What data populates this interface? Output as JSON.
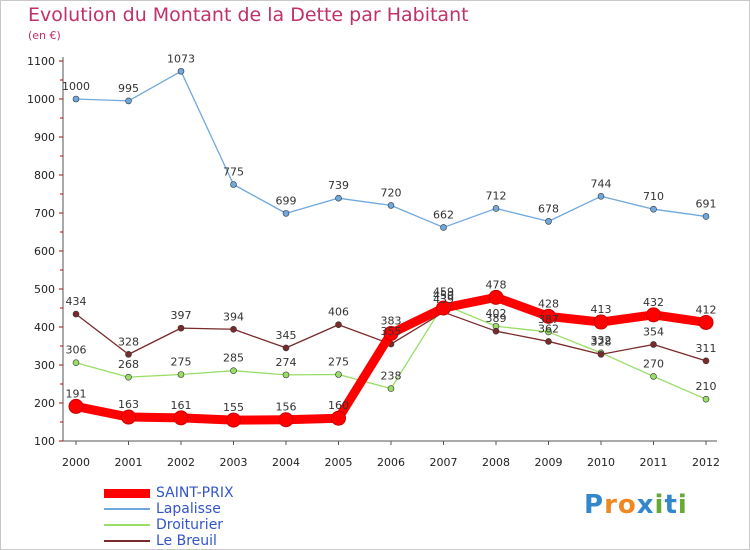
{
  "header": {
    "title": "Evolution du Montant de la Dette par Habitant",
    "unit": "(en €)"
  },
  "chart_data": {
    "type": "line",
    "title": "Evolution du Montant de la Dette par Habitant",
    "ylabel": "(en €)",
    "xlabel": "",
    "x": [
      "2000",
      "2001",
      "2002",
      "2003",
      "2004",
      "2005",
      "2006",
      "2007",
      "2008",
      "2009",
      "2010",
      "2011",
      "2012"
    ],
    "ylim": [
      100,
      1100
    ],
    "yticks": [
      100,
      200,
      300,
      400,
      500,
      600,
      700,
      800,
      900,
      1000,
      1100
    ],
    "grid": false,
    "legend_position": "bottom-left",
    "series": [
      {
        "name": "SAINT-PRIX",
        "color": "#ff0000",
        "highlight": true,
        "values": [
          191,
          163,
          161,
          155,
          156,
          160,
          383,
          450,
          478,
          428,
          413,
          432,
          412
        ]
      },
      {
        "name": "Lapalisse",
        "color": "#6fa8dc",
        "values": [
          1000,
          995,
          1073,
          775,
          699,
          739,
          720,
          662,
          712,
          678,
          744,
          710,
          691
        ]
      },
      {
        "name": "Droiturier",
        "color": "#99dd66",
        "values": [
          306,
          268,
          275,
          285,
          274,
          275,
          238,
          459,
          402,
          387,
          332,
          270,
          210
        ]
      },
      {
        "name": "Le Breuil",
        "color": "#7a2a2a",
        "values": [
          434,
          328,
          397,
          394,
          345,
          406,
          355,
          439,
          389,
          362,
          328,
          354,
          311
        ]
      }
    ]
  },
  "logo": {
    "letters": [
      "P",
      "r",
      "o",
      "x",
      "i",
      "t",
      "i"
    ],
    "colors": [
      "#3388cc",
      "#ee8822",
      "#ee8822",
      "#3388cc",
      "#66aa33",
      "#3388cc",
      "#66aa33"
    ]
  }
}
